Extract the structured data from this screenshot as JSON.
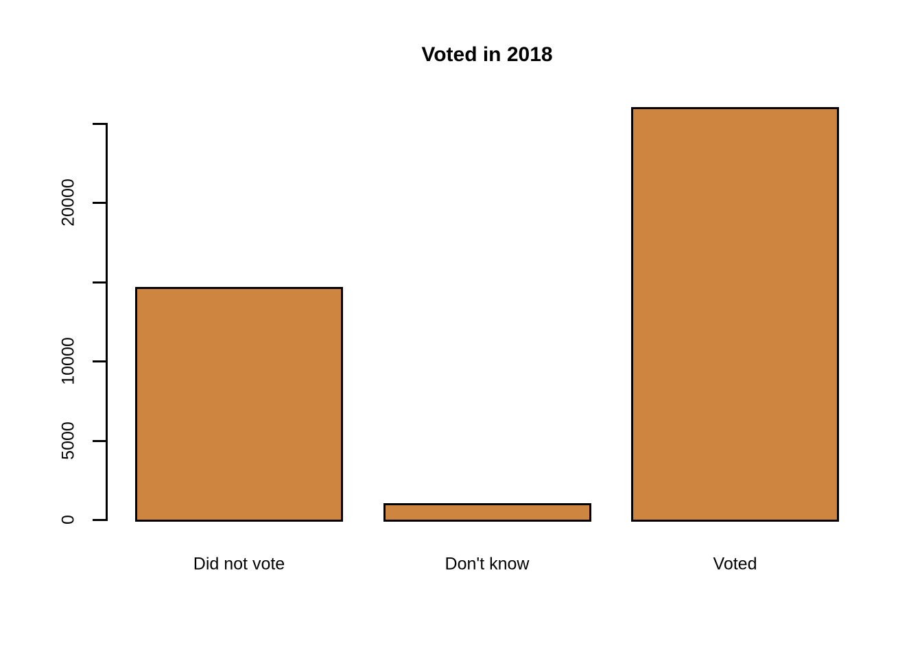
{
  "chart_data": {
    "type": "bar",
    "title": "Voted in 2018",
    "categories": [
      "Did not vote",
      "Don't know",
      "Voted"
    ],
    "values": [
      14700,
      1050,
      26050
    ],
    "xlabel": "",
    "ylabel": "",
    "ylim": [
      0,
      26050
    ],
    "yticks": [
      0,
      5000,
      10000,
      15000,
      20000,
      25000
    ],
    "ytick_labels": [
      "0",
      "5000",
      "10000",
      "",
      "20000",
      ""
    ],
    "bar_fill_color": "#CD853F",
    "bar_border_color": "#000000",
    "text_color": "#000000",
    "background_color": "#FFFFFF",
    "grid": false,
    "legend": "none"
  }
}
